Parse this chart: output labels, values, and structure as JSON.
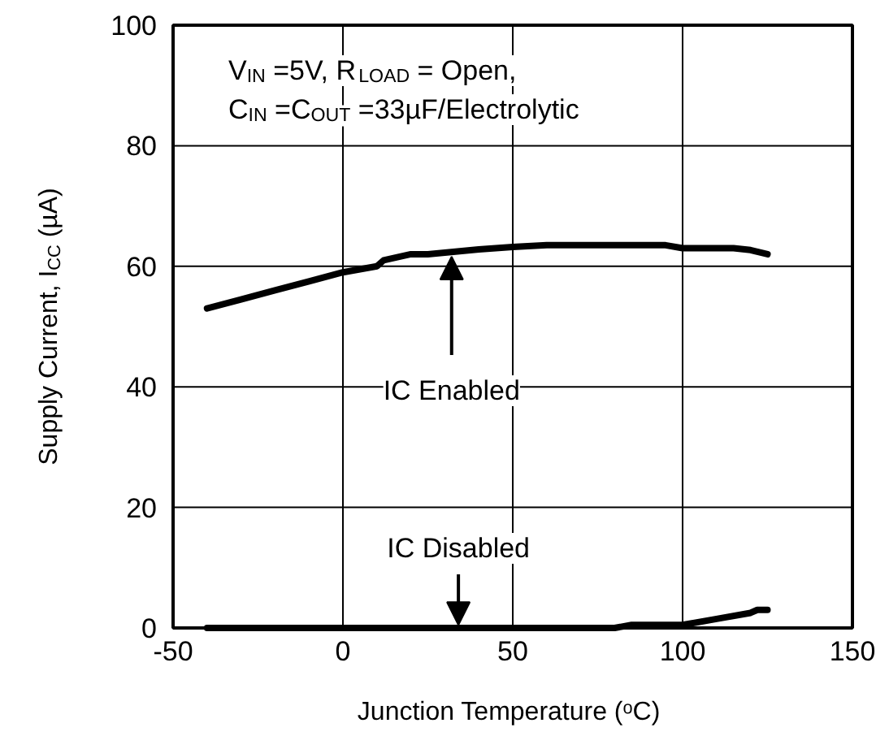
{
  "chart_data": {
    "type": "line",
    "xlabel": "Junction Temperature (ᵒC)",
    "ylabel": "Supply Current, I$_{CC}$ (µA)",
    "series": [
      {
        "color": "#000000",
        "x": [
          -40,
          -30,
          -20,
          -10,
          0,
          10,
          12,
          20,
          25,
          40,
          50,
          60,
          95,
          100,
          115,
          120,
          125
        ],
        "values": [
          53,
          54.5,
          56,
          57.5,
          59,
          60,
          61,
          62,
          62,
          62.8,
          63.2,
          63.5,
          63.5,
          63,
          63,
          62.7,
          62
        ]
      },
      {
        "color": "#000000",
        "x": [
          -40,
          0,
          40,
          80,
          85,
          100,
          110,
          120,
          122,
          125
        ],
        "values": [
          0,
          0,
          0,
          0,
          0.5,
          0.5,
          1.5,
          2.5,
          3,
          3
        ]
      }
    ],
    "annotations": [
      "V$_{IN}$ =5V, R$_{LOAD}$ = Open,",
      "C$_{IN}$ =C$_{OUT}$ =33µF/Electrolytic",
      {
        "text": "IC Enabled",
        "x": 32,
        "y": 62
      },
      {
        "text": "IC Disabled",
        "x": 34,
        "y": 0
      }
    ],
    "xlim": [
      -50,
      150
    ],
    "xticks": [
      -50,
      0,
      50,
      100,
      150
    ],
    "ylim": [
      0,
      100
    ],
    "yticks": [
      0,
      20,
      40,
      60,
      80,
      100
    ],
    "grid": true,
    "marker": "none",
    "line_style": "solid"
  }
}
